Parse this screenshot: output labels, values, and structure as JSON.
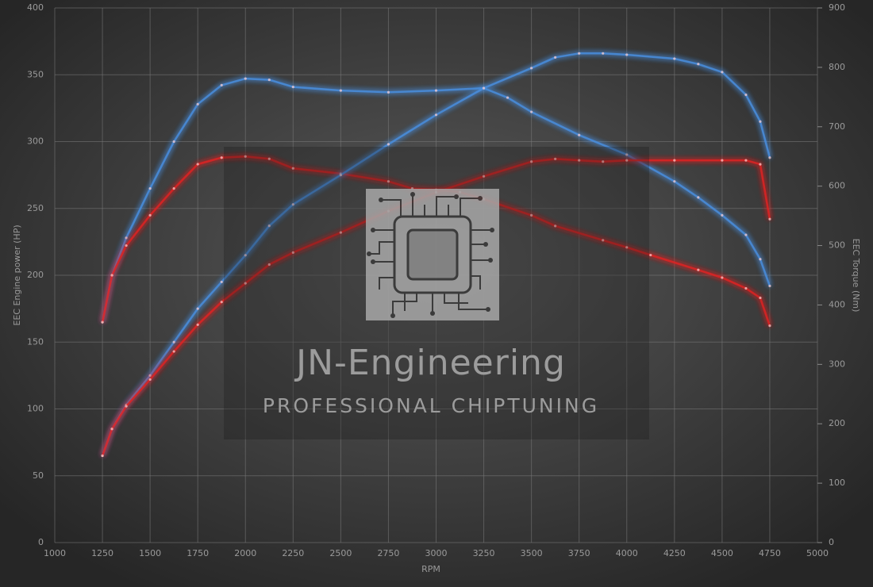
{
  "chart_data": {
    "type": "line",
    "xlabel": "RPM",
    "ylabel": "EEC Engine power (HP)",
    "y2label": "EEC Torque (Nm)",
    "xlim": [
      1000,
      5000
    ],
    "xticks": [
      1000,
      1250,
      1500,
      1750,
      2000,
      2250,
      2500,
      2750,
      3000,
      3250,
      3500,
      3750,
      4000,
      4250,
      4500,
      4750,
      5000
    ],
    "ylim": [
      0,
      400
    ],
    "yticks": [
      0,
      50,
      100,
      150,
      200,
      250,
      300,
      350,
      400
    ],
    "y2lim": [
      0,
      900
    ],
    "y2ticks": [
      0,
      100,
      200,
      300,
      400,
      500,
      600,
      700,
      800,
      900
    ],
    "grid": true,
    "series": [
      {
        "color": "#4a8fe0",
        "axis": "y2",
        "x": [
          1250,
          1300,
          1375,
          1500,
          1625,
          1750,
          1875,
          2000,
          2125,
          2250,
          2500,
          2750,
          3000,
          3250,
          3375,
          3500,
          3750,
          4000,
          4250,
          4375,
          4500,
          4625,
          4700,
          4750
        ],
        "values": [
          371,
          450,
          513,
          596,
          675,
          738,
          770,
          781,
          779,
          767,
          761,
          758,
          761,
          765,
          749,
          725,
          686,
          653,
          608,
          581,
          551,
          518,
          477,
          432
        ]
      },
      {
        "color": "#e02424",
        "axis": "y2",
        "x": [
          1250,
          1300,
          1375,
          1500,
          1625,
          1750,
          1875,
          2000,
          2125,
          2250,
          2500,
          2750,
          2875,
          3000,
          3125,
          3250,
          3500,
          3625,
          3875,
          4000,
          4125,
          4375,
          4500,
          4625,
          4700,
          4750
        ],
        "values": [
          371,
          450,
          500,
          551,
          596,
          637,
          648,
          650,
          646,
          630,
          621,
          608,
          596,
          594,
          590,
          578,
          551,
          533,
          509,
          497,
          484,
          459,
          446,
          428,
          412,
          365
        ]
      },
      {
        "color": "#4a8fe0",
        "x": [
          1250,
          1300,
          1375,
          1500,
          1625,
          1750,
          1875,
          2000,
          2125,
          2250,
          2500,
          2750,
          3000,
          3250,
          3500,
          3625,
          3750,
          3875,
          4000,
          4250,
          4375,
          4500,
          4625,
          4700,
          4750
        ],
        "values": [
          65,
          85,
          103,
          125,
          150,
          175,
          195,
          215,
          237,
          253,
          275,
          298,
          320,
          340,
          355,
          363,
          366,
          366,
          365,
          362,
          358,
          352,
          335,
          315,
          288
        ]
      },
      {
        "color": "#e02424",
        "x": [
          1250,
          1300,
          1375,
          1500,
          1625,
          1750,
          1875,
          2000,
          2125,
          2250,
          2500,
          2750,
          3000,
          3250,
          3500,
          3625,
          3750,
          3875,
          4000,
          4250,
          4500,
          4625,
          4700,
          4750
        ],
        "values": [
          65,
          85,
          102,
          122,
          143,
          163,
          180,
          194,
          208,
          217,
          232,
          248,
          262,
          274,
          285,
          287,
          286,
          285,
          286,
          286,
          286,
          286,
          283,
          242
        ]
      }
    ]
  },
  "watermark": {
    "title": "JN-Engineering",
    "subtitle": "PROFESSIONAL CHIPTUNING"
  }
}
